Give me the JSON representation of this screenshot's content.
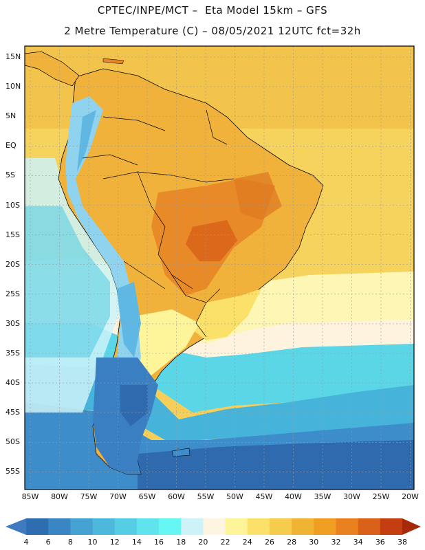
{
  "title_line1": "CPTEC/INPE/MCT –  Eta Model 15km – GFS",
  "title_line2": "2 Metre Temperature (C) – 08/05/2021 12UTC fct=32h",
  "lat_ticks": [
    "15N",
    "10N",
    "5N",
    "EQ",
    "5S",
    "10S",
    "15S",
    "20S",
    "25S",
    "30S",
    "35S",
    "40S",
    "45S",
    "50S",
    "55S"
  ],
  "lon_ticks": [
    "85W",
    "80W",
    "75W",
    "70W",
    "65W",
    "60W",
    "55W",
    "50W",
    "45W",
    "40W",
    "35W",
    "30W",
    "25W",
    "20W"
  ],
  "colorbar": {
    "labels": [
      "4",
      "6",
      "8",
      "10",
      "12",
      "14",
      "16",
      "18",
      "20",
      "22",
      "24",
      "26",
      "28",
      "30",
      "32",
      "34",
      "36",
      "38"
    ],
    "colors": [
      "#3e7bbf",
      "#2e6db0",
      "#3a86c4",
      "#46a2d2",
      "#4cb9dc",
      "#55cde4",
      "#5fe3ec",
      "#66f6f4",
      "#cdf2f8",
      "#fdf4e2",
      "#fef59a",
      "#fbe06a",
      "#f6cc4c",
      "#f0b434",
      "#ef9e22",
      "#e9821e",
      "#d9611a",
      "#c43e12",
      "#a62a0a"
    ]
  },
  "zones": {
    "sea_cold": "#2f6aaf",
    "sea_mid": "#3c8fcc",
    "sea_teal": "#4bd6e6",
    "sea_cream": "#fdf3df",
    "sea_warm": "#f5d160",
    "land_warm": "#f0b23a",
    "land_hot": "#e58526",
    "andes": "#8fd3ef",
    "patagonia": "#3b7fc3"
  }
}
